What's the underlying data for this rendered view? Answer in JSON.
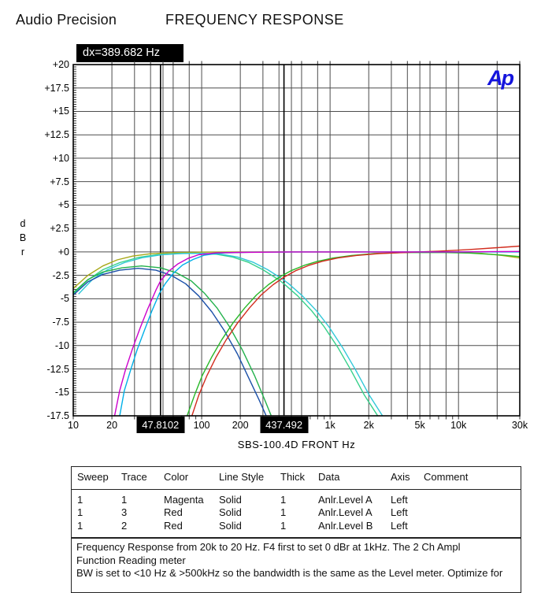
{
  "header": {
    "brand": "Audio Precision",
    "title": "FREQUENCY RESPONSE"
  },
  "logo_text": "Ap",
  "cursor_readout": "dx=389.682  Hz",
  "chart_data": {
    "type": "line",
    "title": "FREQUENCY RESPONSE",
    "xlabel": "SBS-100.4D  FRONT  Hz",
    "ylabel": "d B r",
    "x_scale": "log",
    "xlim": [
      10,
      30000
    ],
    "ylim": [
      -17.5,
      20
    ],
    "grid": "on",
    "y_ticks": [
      {
        "v": 20,
        "label": "+20"
      },
      {
        "v": 17.5,
        "label": "+17.5"
      },
      {
        "v": 15,
        "label": "+15"
      },
      {
        "v": 12.5,
        "label": "+12.5"
      },
      {
        "v": 10,
        "label": "+10"
      },
      {
        "v": 7.5,
        "label": "+7.5"
      },
      {
        "v": 5,
        "label": "+5"
      },
      {
        "v": 2.5,
        "label": "+2.5"
      },
      {
        "v": 0,
        "label": "+0"
      },
      {
        "v": -2.5,
        "label": "-2.5"
      },
      {
        "v": -5,
        "label": "-5"
      },
      {
        "v": -7.5,
        "label": "-7.5"
      },
      {
        "v": -10,
        "label": "-10"
      },
      {
        "v": -12.5,
        "label": "-12.5"
      },
      {
        "v": -15,
        "label": "-15"
      },
      {
        "v": -17.5,
        "label": "-17.5"
      }
    ],
    "x_tick_labels": [
      {
        "f": 10,
        "label": "10"
      },
      {
        "f": 20,
        "label": "20"
      },
      {
        "f": 100,
        "label": "100"
      },
      {
        "f": 200,
        "label": "200"
      },
      {
        "f": 1000,
        "label": "1k"
      },
      {
        "f": 2000,
        "label": "2k"
      },
      {
        "f": 5000,
        "label": "5k"
      },
      {
        "f": 10000,
        "label": "10k"
      },
      {
        "f": 30000,
        "label": "30k"
      }
    ],
    "x_gridlines": [
      20,
      30,
      40,
      50,
      60,
      80,
      100,
      200,
      300,
      400,
      500,
      600,
      800,
      1000,
      2000,
      3000,
      4000,
      5000,
      6000,
      8000,
      10000,
      20000,
      30000
    ],
    "x_minor_ticks": [
      10,
      20,
      30,
      40,
      50,
      60,
      70,
      80,
      90,
      100,
      200,
      300,
      400,
      500,
      600,
      700,
      800,
      900,
      1000,
      2000,
      3000,
      4000,
      5000,
      6000,
      7000,
      8000,
      9000,
      10000,
      20000,
      30000
    ],
    "cursors": [
      {
        "f": 47.8102,
        "label": "47.8102"
      },
      {
        "f": 437.492,
        "label": "437.492"
      }
    ],
    "cursor_delta_label": "dx=389.682  Hz",
    "series": [
      {
        "name": "olive-flat-response",
        "color": "#a8a818",
        "points": [
          [
            10,
            -3.9
          ],
          [
            13,
            -2.5
          ],
          [
            17,
            -1.5
          ],
          [
            22,
            -0.85
          ],
          [
            29,
            -0.45
          ],
          [
            40,
            -0.2
          ],
          [
            60,
            -0.08
          ],
          [
            100,
            -0.03
          ],
          [
            300,
            0
          ],
          [
            2000,
            0
          ],
          [
            8000,
            -0.02
          ],
          [
            15000,
            -0.15
          ],
          [
            22000,
            -0.38
          ],
          [
            30000,
            -0.65
          ]
        ]
      },
      {
        "name": "green-lowpass-437",
        "color": "#35d08a",
        "points": [
          [
            10,
            -4.5
          ],
          [
            13,
            -3.0
          ],
          [
            17,
            -1.9
          ],
          [
            23,
            -1.15
          ],
          [
            32,
            -0.6
          ],
          [
            45,
            -0.3
          ],
          [
            65,
            -0.17
          ],
          [
            95,
            -0.15
          ],
          [
            130,
            -0.25
          ],
          [
            175,
            -0.55
          ],
          [
            230,
            -1.1
          ],
          [
            300,
            -1.9
          ],
          [
            400,
            -3.0
          ],
          [
            437,
            -3.4
          ],
          [
            560,
            -4.7
          ],
          [
            720,
            -6.3
          ],
          [
            900,
            -8.0
          ],
          [
            1150,
            -10.2
          ],
          [
            1450,
            -12.6
          ],
          [
            1850,
            -15.3
          ],
          [
            2350,
            -17.5
          ]
        ]
      },
      {
        "name": "cyan-lowpass-437",
        "color": "#30c8d8",
        "points": [
          [
            11,
            -4.5
          ],
          [
            14,
            -3.0
          ],
          [
            18.5,
            -1.9
          ],
          [
            25,
            -1.15
          ],
          [
            35,
            -0.6
          ],
          [
            49,
            -0.3
          ],
          [
            71,
            -0.17
          ],
          [
            104,
            -0.15
          ],
          [
            142,
            -0.25
          ],
          [
            191,
            -0.55
          ],
          [
            251,
            -1.1
          ],
          [
            327,
            -1.9
          ],
          [
            436,
            -3.0
          ],
          [
            476,
            -3.4
          ],
          [
            610,
            -4.7
          ],
          [
            785,
            -6.3
          ],
          [
            980,
            -8.0
          ],
          [
            1250,
            -10.2
          ],
          [
            1580,
            -12.6
          ],
          [
            2020,
            -15.3
          ],
          [
            2560,
            -17.5
          ]
        ]
      },
      {
        "name": "green-bandpass-sub",
        "color": "#22b14c",
        "points": [
          [
            10,
            -4.35
          ],
          [
            13,
            -2.95
          ],
          [
            17,
            -2.15
          ],
          [
            24,
            -1.7
          ],
          [
            34,
            -1.5
          ],
          [
            48,
            -1.7
          ],
          [
            64,
            -2.25
          ],
          [
            83,
            -3.1
          ],
          [
            105,
            -4.4
          ],
          [
            132,
            -6.0
          ],
          [
            165,
            -8.0
          ],
          [
            208,
            -10.5
          ],
          [
            258,
            -13.2
          ],
          [
            308,
            -15.7
          ],
          [
            348,
            -17.5
          ]
        ]
      },
      {
        "name": "navy-bandpass-sub",
        "color": "#1a4fa8",
        "points": [
          [
            10,
            -4.6
          ],
          [
            13,
            -3.2
          ],
          [
            17,
            -2.4
          ],
          [
            23,
            -1.95
          ],
          [
            32,
            -1.75
          ],
          [
            44,
            -1.95
          ],
          [
            58,
            -2.5
          ],
          [
            75,
            -3.4
          ],
          [
            95,
            -4.7
          ],
          [
            120,
            -6.4
          ],
          [
            150,
            -8.4
          ],
          [
            190,
            -10.9
          ],
          [
            235,
            -13.6
          ],
          [
            280,
            -15.8
          ],
          [
            318,
            -17.5
          ]
        ]
      },
      {
        "name": "green-highpass-437",
        "color": "#28b828",
        "points": [
          [
            77,
            -17.5
          ],
          [
            88,
            -15.3
          ],
          [
            101,
            -13.2
          ],
          [
            120,
            -11.2
          ],
          [
            143,
            -9.4
          ],
          [
            175,
            -7.6
          ],
          [
            216,
            -6.0
          ],
          [
            267,
            -4.6
          ],
          [
            331,
            -3.5
          ],
          [
            402,
            -2.7
          ],
          [
            497,
            -2.0
          ],
          [
            626,
            -1.45
          ],
          [
            800,
            -1.0
          ],
          [
            1060,
            -0.65
          ],
          [
            1470,
            -0.38
          ],
          [
            2200,
            -0.18
          ],
          [
            3700,
            -0.07
          ],
          [
            7000,
            -0.05
          ],
          [
            12000,
            -0.12
          ],
          [
            20000,
            -0.3
          ],
          [
            30000,
            -0.5
          ]
        ]
      },
      {
        "name": "red-highpass-437",
        "color": "#d22c1e",
        "points": [
          [
            84,
            -17.5
          ],
          [
            95,
            -15.3
          ],
          [
            110,
            -13.2
          ],
          [
            130,
            -11.2
          ],
          [
            155,
            -9.4
          ],
          [
            190,
            -7.6
          ],
          [
            235,
            -6.0
          ],
          [
            290,
            -4.6
          ],
          [
            360,
            -3.5
          ],
          [
            437,
            -2.7
          ],
          [
            540,
            -2.0
          ],
          [
            680,
            -1.45
          ],
          [
            870,
            -1.0
          ],
          [
            1150,
            -0.65
          ],
          [
            1600,
            -0.38
          ],
          [
            2400,
            -0.18
          ],
          [
            4000,
            -0.05
          ],
          [
            7000,
            0.08
          ],
          [
            12000,
            0.25
          ],
          [
            20000,
            0.45
          ],
          [
            30000,
            0.62
          ]
        ]
      },
      {
        "name": "cyan-highpass-48",
        "color": "#00b0e8",
        "points": [
          [
            23,
            -17.5
          ],
          [
            25,
            -14.8
          ],
          [
            28,
            -12.6
          ],
          [
            31.5,
            -10.4
          ],
          [
            36,
            -8.3
          ],
          [
            41,
            -6.3
          ],
          [
            47,
            -4.4
          ],
          [
            52,
            -3.4
          ],
          [
            60,
            -2.3
          ],
          [
            71,
            -1.4
          ],
          [
            86,
            -0.8
          ],
          [
            105,
            -0.35
          ],
          [
            140,
            -0.12
          ],
          [
            250,
            -0.03
          ],
          [
            600,
            0
          ],
          [
            30000,
            0
          ]
        ]
      },
      {
        "name": "magenta-highpass-48",
        "color": "#cc00cc",
        "points": [
          [
            21,
            -17.5
          ],
          [
            23,
            -14.8
          ],
          [
            25.5,
            -12.6
          ],
          [
            29,
            -10.3
          ],
          [
            33,
            -8.2
          ],
          [
            38,
            -6.1
          ],
          [
            44,
            -4.1
          ],
          [
            47.8,
            -3.1
          ],
          [
            55,
            -2.1
          ],
          [
            65,
            -1.3
          ],
          [
            78,
            -0.7
          ],
          [
            95,
            -0.3
          ],
          [
            130,
            -0.1
          ],
          [
            200,
            -0.05
          ],
          [
            500,
            0
          ],
          [
            2000,
            0
          ],
          [
            10000,
            0
          ],
          [
            30000,
            0.05
          ]
        ]
      }
    ]
  },
  "table": {
    "headers": [
      "Sweep",
      "Trace",
      "Color",
      "Line Style",
      "Thick",
      "Data",
      "Axis",
      "Comment"
    ],
    "rows": [
      [
        "1",
        "1",
        "Magenta",
        "Solid",
        "1",
        "Anlr.Level A",
        "Left",
        ""
      ],
      [
        "1",
        "3",
        "Red",
        "Solid",
        "1",
        "Anlr.Level A",
        "Left",
        ""
      ],
      [
        "1",
        "2",
        "Red",
        "Solid",
        "1",
        "Anlr.Level B",
        "Left",
        ""
      ]
    ]
  },
  "notes": [
    "Frequency Response from 20k to 20 Hz.  F4 first to set 0 dBr at 1kHz.  The 2 Ch Ampl",
    "Function Reading meter",
    "BW is set to <10 Hz & >500kHz so the bandwidth is the same as the Level meter.  Optimize for"
  ]
}
